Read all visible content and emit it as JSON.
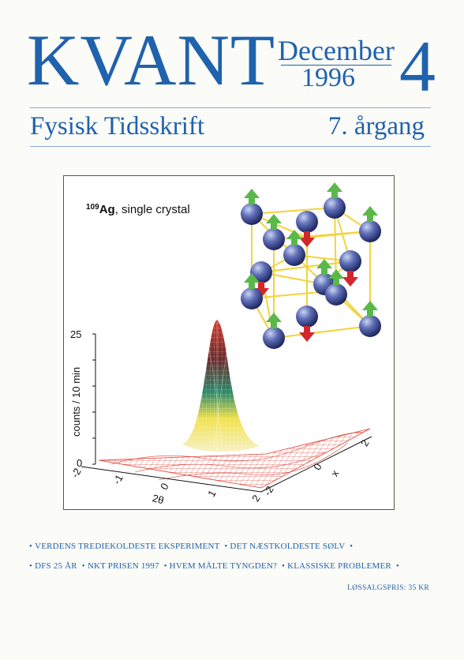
{
  "masthead": {
    "title": "KVANT",
    "month": "December",
    "year": "1996",
    "issue_number": "4"
  },
  "subheader": {
    "subtitle": "Fysisk Tidsskrift",
    "volume": "7. årgang"
  },
  "figure": {
    "isotope_mass": "109",
    "isotope_symbol": "Ag",
    "sample_rest": ", single crystal",
    "y_axis_label": "counts / 10 min",
    "y_ticks": [
      "0",
      "25"
    ],
    "x_axis_label": "2θ",
    "x_ticks": [
      "-2",
      "-1",
      "0",
      "1",
      "2"
    ],
    "side_axis_label": "x",
    "side_ticks": [
      "-2",
      "0",
      "2"
    ],
    "colors": {
      "peak_top": "#c0392b",
      "peak_mid": "#1aa37a",
      "peak_yellow": "#f2e14a",
      "base": "#e0433a",
      "atom": "#3f4e9a",
      "arrow_up": "#5ab84a",
      "arrow_down": "#d2262b",
      "bond": "#f1d43a"
    }
  },
  "topics": {
    "line1": [
      "VERDENS TREDIEKOLDESTE EKSPERIMENT",
      "DET NÆSTKOLDESTE SØLV"
    ],
    "line2": [
      "DFS 25 ÅR",
      "NKT PRISEN 1997",
      "HVEM MÅLTE TYNGDEN?",
      "KLASSISKE PROBLEMER"
    ]
  },
  "price": "LØSSALGSPRIS: 35 KR"
}
